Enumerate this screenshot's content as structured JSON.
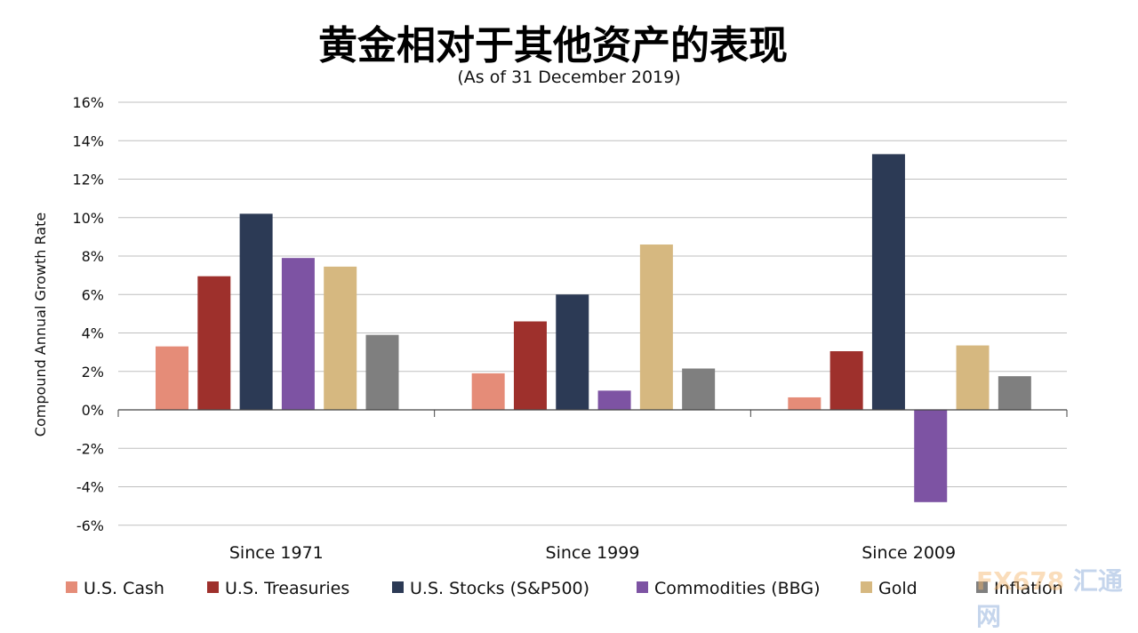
{
  "chart_data": {
    "type": "bar",
    "title": "黄金相对于其他资产的表现",
    "subtitle": "(As of 31 December 2019)",
    "ylabel": "Compound Annual Growth Rate",
    "xlabel": "",
    "ylim": [
      -6,
      16
    ],
    "yticks": [
      "16%",
      "14%",
      "12%",
      "10%",
      "8%",
      "6%",
      "4%",
      "2%",
      "0%",
      "-2%",
      "-4%",
      "-6%"
    ],
    "ytick_values": [
      16,
      14,
      12,
      10,
      8,
      6,
      4,
      2,
      0,
      -2,
      -4,
      -6
    ],
    "grid": true,
    "legend_position": "bottom",
    "categories": [
      "Since 1971",
      "Since 1999",
      "Since 2009"
    ],
    "series": [
      {
        "name": "U.S. Cash",
        "color": "#e58c78",
        "values": [
          3.3,
          1.9,
          0.65
        ]
      },
      {
        "name": "U.S. Treasuries",
        "color": "#9e302c",
        "values": [
          6.95,
          4.6,
          3.05
        ]
      },
      {
        "name": "U.S. Stocks (S&P500)",
        "color": "#2c3a55",
        "values": [
          10.2,
          6.0,
          13.3
        ]
      },
      {
        "name": "Commodities (BBG)",
        "color": "#7d53a3",
        "values": [
          7.9,
          1.0,
          -4.8
        ]
      },
      {
        "name": "Gold",
        "color": "#d6b880",
        "values": [
          7.45,
          8.6,
          3.35
        ]
      },
      {
        "name": "Inflation",
        "color": "#7f7f7f",
        "values": [
          3.9,
          2.15,
          1.75
        ]
      }
    ]
  },
  "watermark": {
    "text_a": "FX678",
    "text_b": "汇通网"
  }
}
